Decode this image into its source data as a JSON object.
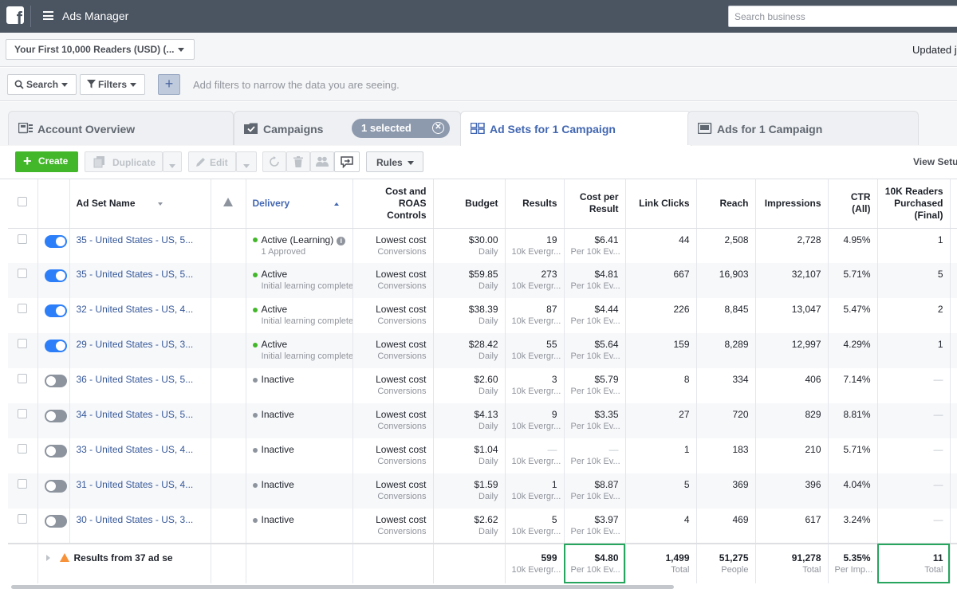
{
  "topbar": {
    "logo": "f",
    "app_title": "Ads Manager",
    "search_placeholder": "Search business"
  },
  "account": {
    "selector": "Your First 10,000 Readers (USD) (...",
    "updated": "Updated ju"
  },
  "filters": {
    "search_label": "Search",
    "filters_label": "Filters",
    "add_label": "+",
    "hint": "Add filters to narrow the data you are seeing."
  },
  "tabs": [
    {
      "label": "Account Overview",
      "icon": "account-overview-icon"
    },
    {
      "label": "Campaigns",
      "icon": "folder-check-icon"
    },
    {
      "label": "Ad Sets for 1 Campaign",
      "icon": "grid-icon"
    },
    {
      "label": "Ads for 1 Campaign",
      "icon": "ad-icon"
    }
  ],
  "selected_pill": "1 selected",
  "toolbar": {
    "create": "Create",
    "duplicate": "Duplicate",
    "edit": "Edit",
    "rules": "Rules",
    "view_setup": "View Setu"
  },
  "columns": {
    "name": "Ad Set Name",
    "delivery": "Delivery",
    "bid": "Cost and ROAS Controls",
    "budget": "Budget",
    "results": "Results",
    "cpr": "Cost per Result",
    "clicks": "Link Clicks",
    "reach": "Reach",
    "impressions": "Impressions",
    "ctr": "CTR (All)",
    "purchased": "10K Readers Purchased (Final)"
  },
  "rows": [
    {
      "on": true,
      "name": "35 - United States - US, 5...",
      "delivery": "Active (Learning)",
      "delivery_sub": "1 Approved",
      "status": "green",
      "info": true,
      "bid": "Lowest cost",
      "bid_sub": "Conversions",
      "budget": "$30.00",
      "budget_sub": "Daily",
      "results": "19",
      "results_sub": "10k Evergr...",
      "cpr": "$6.41",
      "cpr_sub": "Per 10k Ev...",
      "clicks": "44",
      "reach": "2,508",
      "impressions": "2,728",
      "ctr": "4.95%",
      "purchased": "1"
    },
    {
      "on": true,
      "name": "35 - United States - US, 5...",
      "delivery": "Active",
      "delivery_sub": "Initial learning complete",
      "status": "green",
      "bid": "Lowest cost",
      "bid_sub": "Conversions",
      "budget": "$59.85",
      "budget_sub": "Daily",
      "results": "273",
      "results_sub": "10k Evergr...",
      "cpr": "$4.81",
      "cpr_sub": "Per 10k Ev...",
      "clicks": "667",
      "reach": "16,903",
      "impressions": "32,107",
      "ctr": "5.71%",
      "purchased": "5"
    },
    {
      "on": true,
      "name": "32 - United States - US, 4...",
      "delivery": "Active",
      "delivery_sub": "Initial learning complete",
      "status": "green",
      "bid": "Lowest cost",
      "bid_sub": "Conversions",
      "budget": "$38.39",
      "budget_sub": "Daily",
      "results": "87",
      "results_sub": "10k Evergr...",
      "cpr": "$4.44",
      "cpr_sub": "Per 10k Ev...",
      "clicks": "226",
      "reach": "8,845",
      "impressions": "13,047",
      "ctr": "5.47%",
      "purchased": "2"
    },
    {
      "on": true,
      "name": "29 - United States - US, 3...",
      "delivery": "Active",
      "delivery_sub": "Initial learning complete",
      "status": "green",
      "bid": "Lowest cost",
      "bid_sub": "Conversions",
      "budget": "$28.42",
      "budget_sub": "Daily",
      "results": "55",
      "results_sub": "10k Evergr...",
      "cpr": "$5.64",
      "cpr_sub": "Per 10k Ev...",
      "clicks": "159",
      "reach": "8,289",
      "impressions": "12,997",
      "ctr": "4.29%",
      "purchased": "1"
    },
    {
      "on": false,
      "name": "36 - United States - US, 5...",
      "delivery": "Inactive",
      "delivery_sub": "",
      "status": "gray",
      "bid": "Lowest cost",
      "bid_sub": "Conversions",
      "budget": "$2.60",
      "budget_sub": "Daily",
      "results": "3",
      "results_sub": "10k Evergr...",
      "cpr": "$5.79",
      "cpr_sub": "Per 10k Ev...",
      "clicks": "8",
      "reach": "334",
      "impressions": "406",
      "ctr": "7.14%",
      "purchased": "—"
    },
    {
      "on": false,
      "name": "34 - United States - US, 5...",
      "delivery": "Inactive",
      "delivery_sub": "",
      "status": "gray",
      "bid": "Lowest cost",
      "bid_sub": "Conversions",
      "budget": "$4.13",
      "budget_sub": "Daily",
      "results": "9",
      "results_sub": "10k Evergr...",
      "cpr": "$3.35",
      "cpr_sub": "Per 10k Ev...",
      "clicks": "27",
      "reach": "720",
      "impressions": "829",
      "ctr": "8.81%",
      "purchased": "—"
    },
    {
      "on": false,
      "name": "33 - United States - US, 4...",
      "delivery": "Inactive",
      "delivery_sub": "",
      "status": "gray",
      "bid": "Lowest cost",
      "bid_sub": "Conversions",
      "budget": "$1.04",
      "budget_sub": "Daily",
      "results": "—",
      "results_sub": "10k Evergr...",
      "cpr": "—",
      "cpr_sub": "Per 10k Ev...",
      "clicks": "1",
      "reach": "183",
      "impressions": "210",
      "ctr": "5.71%",
      "purchased": "—"
    },
    {
      "on": false,
      "name": "31 - United States - US, 4...",
      "delivery": "Inactive",
      "delivery_sub": "",
      "status": "gray",
      "bid": "Lowest cost",
      "bid_sub": "Conversions",
      "budget": "$1.59",
      "budget_sub": "Daily",
      "results": "1",
      "results_sub": "10k Evergr...",
      "cpr": "$8.87",
      "cpr_sub": "Per 10k Ev...",
      "clicks": "5",
      "reach": "369",
      "impressions": "396",
      "ctr": "4.04%",
      "purchased": "—"
    },
    {
      "on": false,
      "name": "30 - United States - US, 3...",
      "delivery": "Inactive",
      "delivery_sub": "",
      "status": "gray",
      "bid": "Lowest cost",
      "bid_sub": "Conversions",
      "budget": "$2.62",
      "budget_sub": "Daily",
      "results": "5",
      "results_sub": "10k Evergr...",
      "cpr": "$3.97",
      "cpr_sub": "Per 10k Ev...",
      "clicks": "4",
      "reach": "469",
      "impressions": "617",
      "ctr": "3.24%",
      "purchased": "—"
    }
  ],
  "totals": {
    "label": "Results from 37 ad se",
    "results": "599",
    "results_sub": "10k Evergr...",
    "cpr": "$4.80",
    "cpr_sub": "Per 10k Ev...",
    "clicks": "1,499",
    "clicks_sub": "Total",
    "reach": "51,275",
    "reach_sub": "People",
    "impressions": "91,278",
    "impressions_sub": "Total",
    "ctr": "5.35%",
    "ctr_sub": "Per Imp...",
    "purchased": "11",
    "purchased_sub": "Total"
  },
  "colors": {
    "topbar": "#4b5461",
    "link": "#365899",
    "active_tab": "#4267b2",
    "create": "#42b72a",
    "toggle_on": "#2d7ff9",
    "highlight": "#27a55e"
  }
}
